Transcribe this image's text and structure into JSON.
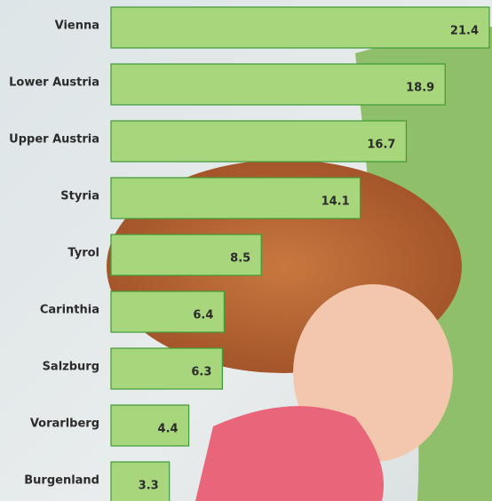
{
  "chart_data": {
    "type": "bar",
    "orientation": "horizontal",
    "categories": [
      "Vienna",
      "Lower Austria",
      "Upper Austria",
      "Styria",
      "Tyrol",
      "Carinthia",
      "Salzburg",
      "Vorarlberg",
      "Burgenland"
    ],
    "values": [
      21.4,
      18.9,
      16.7,
      14.1,
      8.5,
      6.4,
      6.3,
      4.4,
      3.3
    ],
    "color": "#a8d67c",
    "edge_color": "#3f9a3a"
  }
}
